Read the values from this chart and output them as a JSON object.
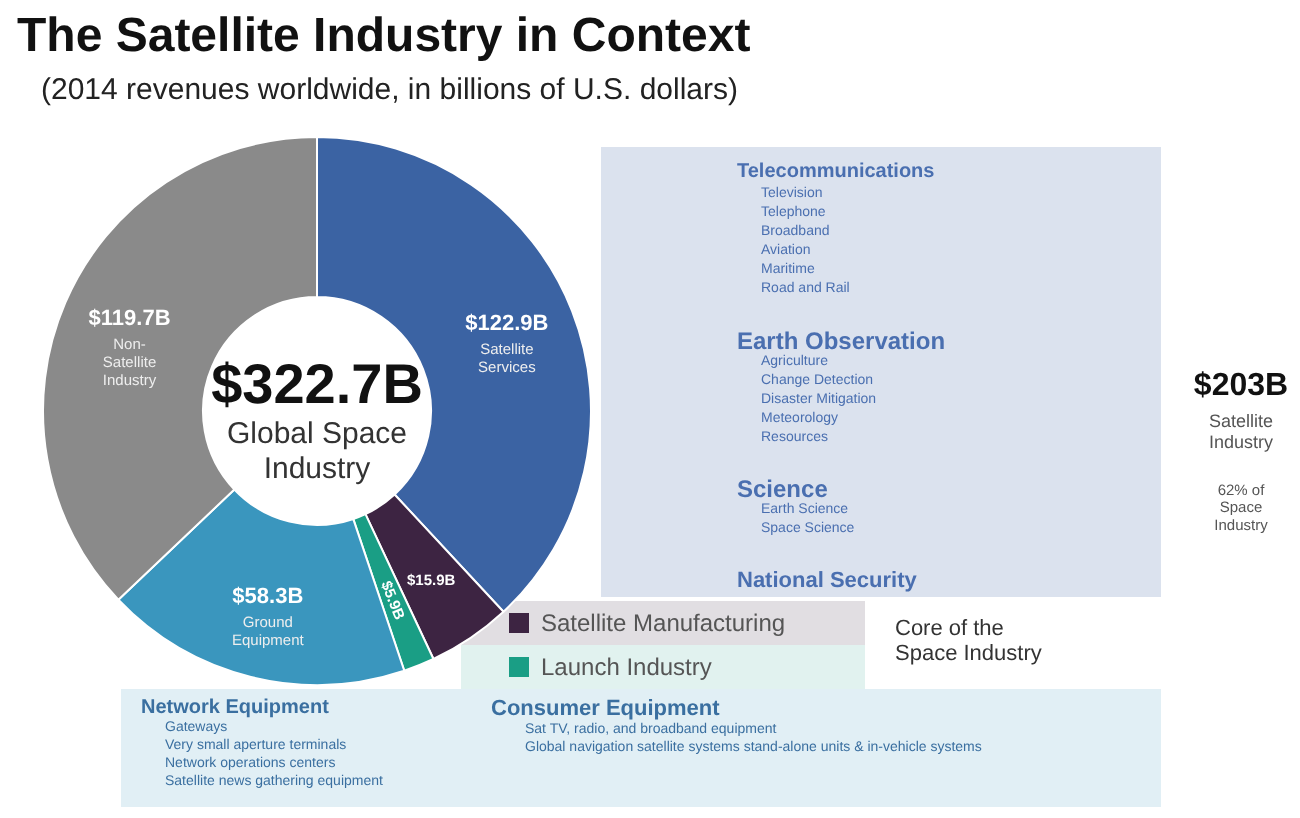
{
  "chart_data": {
    "type": "donut",
    "title": "The Satellite Industry in Context",
    "subtitle": "(2014 revenues worldwide, in billions of U.S. dollars)",
    "categories": [
      "Satellite Services",
      "Satellite Manufacturing",
      "Launch Industry",
      "Ground Equipment",
      "Non-Satellite Industry"
    ],
    "values": [
      122.9,
      15.9,
      5.9,
      58.3,
      119.7
    ],
    "legend": "bottom",
    "colors": [
      "#3b63a3",
      "#3d2442",
      "#1a9e85",
      "#3a96be",
      "#8a8a8a"
    ],
    "value_labels": [
      "$122.9B",
      "$15.9B",
      "$5.9B",
      "$58.3B",
      "$119.7B"
    ],
    "annotations": [
      "$322.7B",
      "Global Space Industry",
      "Telecommunications",
      "Television",
      "Telephone",
      "Broadband",
      "Aviation",
      "Maritime",
      "Road and Rail",
      "Earth Observation",
      "Agriculture",
      "Change Detection",
      "Disaster Mitigation",
      "Meteorology",
      "Resources",
      "Science",
      "Earth Science",
      "Space Science",
      "National Security",
      "Core of the Space Industry",
      "Network Equipment",
      "Gateways",
      "Very small aperture terminals",
      "Network operations centers",
      "Satellite news gathering equipment",
      "Consumer Equipment",
      "Sat TV, radio, and broadband equipment",
      "Global navigation satellite systems stand-alone units & in-vehicle systems",
      "$203B",
      "Satellite Industry",
      "62% of Space Industry"
    ]
  }
}
